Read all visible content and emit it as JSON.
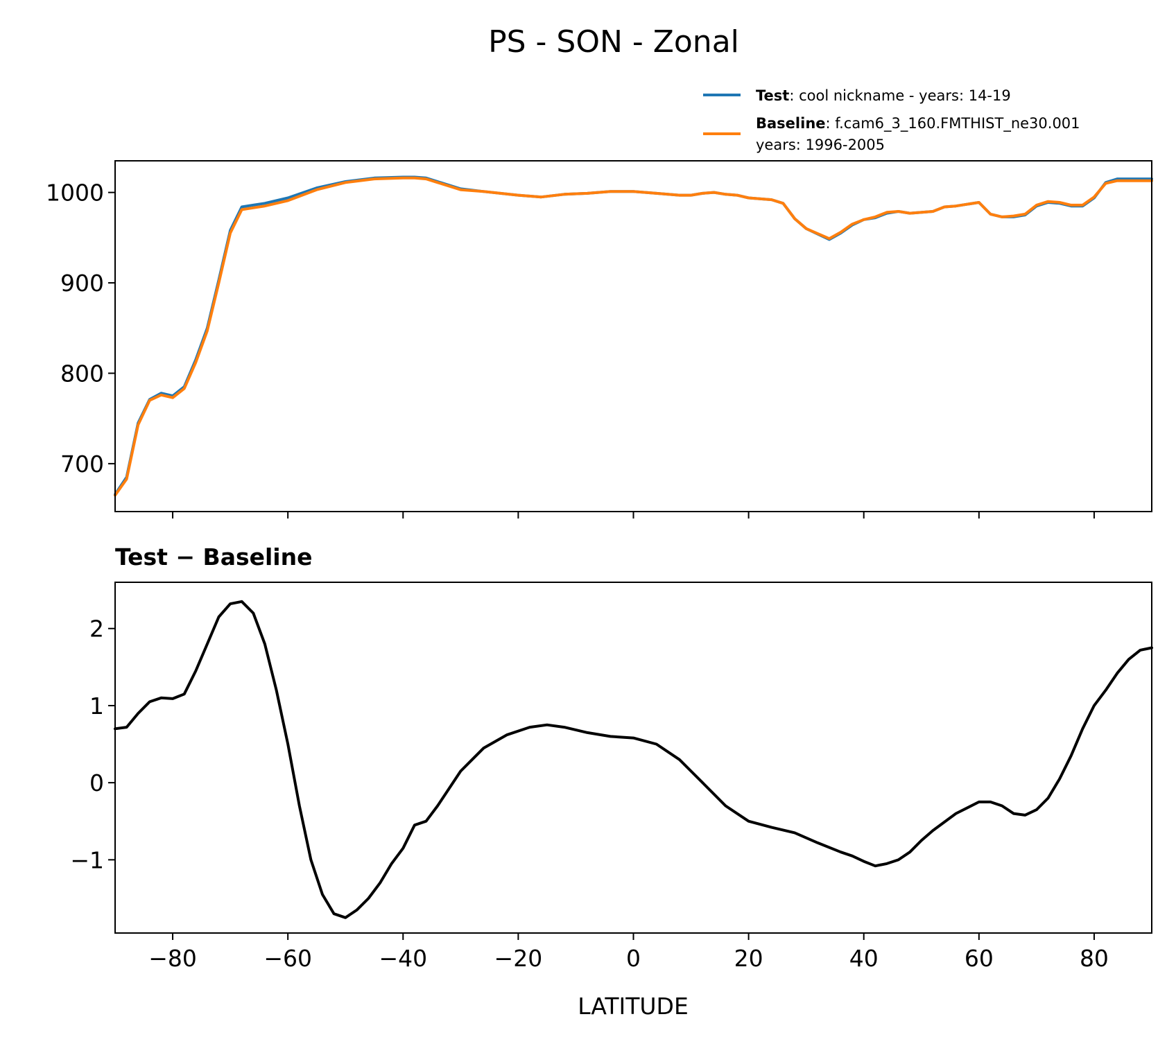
{
  "figure": {
    "title": "PS - SON - Zonal"
  },
  "legend": {
    "test_bold": "Test",
    "test_text": ": cool nickname - years: 14-19",
    "baseline_bold": "Baseline",
    "baseline_text": ": f.cam6_3_160.FMTHIST_ne30.001",
    "baseline_text2": "years: 1996-2005",
    "placement": "upper-right above top panel"
  },
  "chart_data": [
    {
      "type": "line",
      "title": "",
      "xlabel": "",
      "ylabel": "",
      "xlim": [
        -90,
        90
      ],
      "ylim": [
        647,
        1035
      ],
      "yticks": [
        700,
        800,
        900,
        1000
      ],
      "ytick_labels": [
        "700",
        "800",
        "900",
        "1000"
      ],
      "xticks": [
        -80,
        -60,
        -40,
        -20,
        0,
        20,
        40,
        60,
        80
      ],
      "grid": false,
      "series": [
        {
          "name": "Test",
          "color": "#1f77b4",
          "x": [
            -90,
            -88,
            -86,
            -84,
            -82,
            -80,
            -78,
            -76,
            -74,
            -72,
            -70,
            -68,
            -66,
            -64,
            -60,
            -55,
            -50,
            -45,
            -40,
            -38,
            -36,
            -34,
            -30,
            -26,
            -20,
            -16,
            -12,
            -8,
            -4,
            0,
            4,
            8,
            10,
            12,
            14,
            16,
            18,
            20,
            24,
            26,
            28,
            30,
            34,
            36,
            38,
            40,
            42,
            44,
            46,
            48,
            52,
            54,
            56,
            60,
            62,
            64,
            66,
            68,
            70,
            72,
            74,
            76,
            78,
            80,
            82,
            84,
            86,
            88,
            90
          ],
          "y": [
            666,
            685,
            745,
            771,
            778,
            775,
            785,
            815,
            850,
            903,
            958,
            984,
            986,
            988,
            994,
            1005,
            1012,
            1016,
            1017,
            1017,
            1016,
            1012,
            1004,
            1001,
            997,
            995,
            998,
            999,
            1001,
            1001,
            999,
            997,
            997,
            999,
            1000,
            998,
            997,
            994,
            992,
            988,
            971,
            960,
            948,
            955,
            964,
            970,
            972,
            977,
            979,
            977,
            979,
            984,
            985,
            989,
            976,
            973,
            973,
            975,
            985,
            989,
            988,
            985,
            985,
            994,
            1011,
            1015,
            1015,
            1015,
            1015
          ]
        },
        {
          "name": "Baseline",
          "color": "#ff7f0e",
          "x": [
            -90,
            -88,
            -86,
            -84,
            -82,
            -80,
            -78,
            -76,
            -74,
            -72,
            -70,
            -68,
            -66,
            -64,
            -60,
            -55,
            -50,
            -45,
            -40,
            -38,
            -36,
            -34,
            -30,
            -26,
            -20,
            -16,
            -12,
            -8,
            -4,
            0,
            4,
            8,
            10,
            12,
            14,
            16,
            18,
            20,
            24,
            26,
            28,
            30,
            34,
            36,
            38,
            40,
            42,
            44,
            46,
            48,
            52,
            54,
            56,
            60,
            62,
            64,
            66,
            68,
            70,
            72,
            74,
            76,
            78,
            80,
            82,
            84,
            86,
            88,
            90
          ],
          "y": [
            665,
            683,
            743,
            770,
            776,
            773,
            783,
            812,
            847,
            900,
            955,
            981,
            983,
            985,
            991,
            1003,
            1011,
            1015,
            1016,
            1016,
            1015,
            1011,
            1003,
            1001,
            997,
            995,
            998,
            999,
            1001,
            1001,
            999,
            997,
            997,
            999,
            1000,
            998,
            997,
            994,
            992,
            988,
            971,
            960,
            949,
            956,
            965,
            970,
            973,
            978,
            979,
            977,
            979,
            984,
            985,
            989,
            976,
            973,
            974,
            976,
            986,
            990,
            989,
            986,
            986,
            995,
            1010,
            1013,
            1013,
            1013,
            1013
          ]
        }
      ]
    },
    {
      "type": "line",
      "title": "Test − Baseline",
      "xlabel": "LATITUDE",
      "ylabel": "",
      "xlim": [
        -90,
        90
      ],
      "ylim": [
        -1.95,
        2.6
      ],
      "yticks": [
        -1,
        0,
        1,
        2
      ],
      "ytick_labels": [
        "−1",
        "0",
        "1",
        "2"
      ],
      "xticks": [
        -80,
        -60,
        -40,
        -20,
        0,
        20,
        40,
        60,
        80
      ],
      "xtick_labels": [
        "−80",
        "−60",
        "−40",
        "−20",
        "0",
        "20",
        "40",
        "60",
        "80"
      ],
      "grid": false,
      "series": [
        {
          "name": "",
          "color": "#000000",
          "x": [
            -90,
            -88,
            -86,
            -84,
            -82,
            -80,
            -78,
            -76,
            -74,
            -72,
            -70,
            -68,
            -66,
            -64,
            -62,
            -60,
            -58,
            -56,
            -54,
            -52,
            -50,
            -48,
            -46,
            -44,
            -42,
            -40,
            -38,
            -36,
            -35,
            -34,
            -30,
            -28,
            -26,
            -22,
            -18,
            -15,
            -12,
            -8,
            -4,
            0,
            4,
            8,
            10,
            12,
            16,
            20,
            24,
            28,
            32,
            36,
            38,
            40,
            42,
            44,
            46,
            48,
            50,
            52,
            56,
            60,
            62,
            64,
            66,
            68,
            70,
            72,
            74,
            76,
            78,
            80,
            82,
            84,
            86,
            88,
            90
          ],
          "y": [
            0.7,
            0.72,
            0.9,
            1.05,
            1.1,
            1.09,
            1.15,
            1.45,
            1.8,
            2.15,
            2.32,
            2.35,
            2.2,
            1.8,
            1.2,
            0.5,
            -0.3,
            -1.0,
            -1.45,
            -1.7,
            -1.75,
            -1.65,
            -1.5,
            -1.3,
            -1.05,
            -0.85,
            -0.55,
            -0.5,
            -0.4,
            -0.3,
            0.15,
            0.3,
            0.45,
            0.62,
            0.72,
            0.75,
            0.72,
            0.65,
            0.6,
            0.58,
            0.5,
            0.3,
            0.15,
            0.0,
            -0.3,
            -0.5,
            -0.58,
            -0.65,
            -0.78,
            -0.9,
            -0.95,
            -1.02,
            -1.08,
            -1.05,
            -1.0,
            -0.9,
            -0.75,
            -0.62,
            -0.4,
            -0.25,
            -0.25,
            -0.3,
            -0.4,
            -0.42,
            -0.35,
            -0.2,
            0.05,
            0.35,
            0.7,
            1.0,
            1.2,
            1.42,
            1.6,
            1.72,
            1.75
          ]
        }
      ]
    }
  ]
}
